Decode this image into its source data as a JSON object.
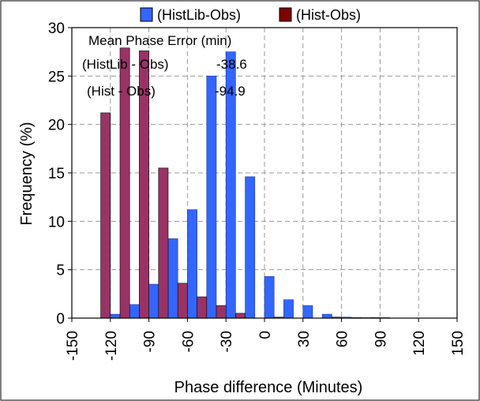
{
  "chart_data": {
    "type": "bar",
    "xlabel": "Phase difference (Minutes)",
    "ylabel": "Frequency (%)",
    "xlim": [
      -150,
      150
    ],
    "ylim": [
      0,
      30
    ],
    "bin_width": 7.5,
    "x_ticks": [
      -150,
      -120,
      -90,
      -60,
      -30,
      0,
      30,
      60,
      90,
      120,
      150
    ],
    "x_tick_labels": [
      "-150",
      "-120",
      "-90",
      "-60",
      "-30",
      "0",
      "30",
      "60",
      "90",
      "120",
      "150"
    ],
    "y_ticks": [
      0,
      5,
      10,
      15,
      20,
      25,
      30
    ],
    "y_tick_labels": [
      "0",
      "5",
      "10",
      "15",
      "20",
      "25",
      "30"
    ],
    "grid": true,
    "legend_position": "top",
    "series": [
      {
        "name": "(HistLib-Obs)",
        "color": "#3366ff",
        "bin_centers": [
          -120,
          -105,
          -90,
          -75,
          -60,
          -45,
          -30,
          -15,
          0,
          15,
          30,
          45,
          60,
          75,
          90
        ],
        "values": [
          0.4,
          1.4,
          3.5,
          8.2,
          11.2,
          25.0,
          27.5,
          14.6,
          4.3,
          1.9,
          1.3,
          0.4,
          0.1,
          0.05,
          0.05
        ]
      },
      {
        "name": "(Hist-Obs)",
        "color": "#993366",
        "bin_centers": [
          -120,
          -105,
          -90,
          -75,
          -60,
          -45,
          -30,
          -15,
          0,
          15,
          30,
          45,
          60,
          75,
          90
        ],
        "values": [
          21.2,
          27.9,
          27.6,
          15.5,
          3.6,
          2.2,
          1.3,
          0.5,
          0,
          0.1,
          0,
          0,
          0.1,
          0.05,
          0.05
        ]
      }
    ],
    "annotations": {
      "title": "Mean Phase Error (min)",
      "rows": [
        {
          "label": "(HistLib - Obs)",
          "value": "-38.6"
        },
        {
          "label": "(Hist - Obs)",
          "value": "-94.9"
        }
      ]
    }
  }
}
